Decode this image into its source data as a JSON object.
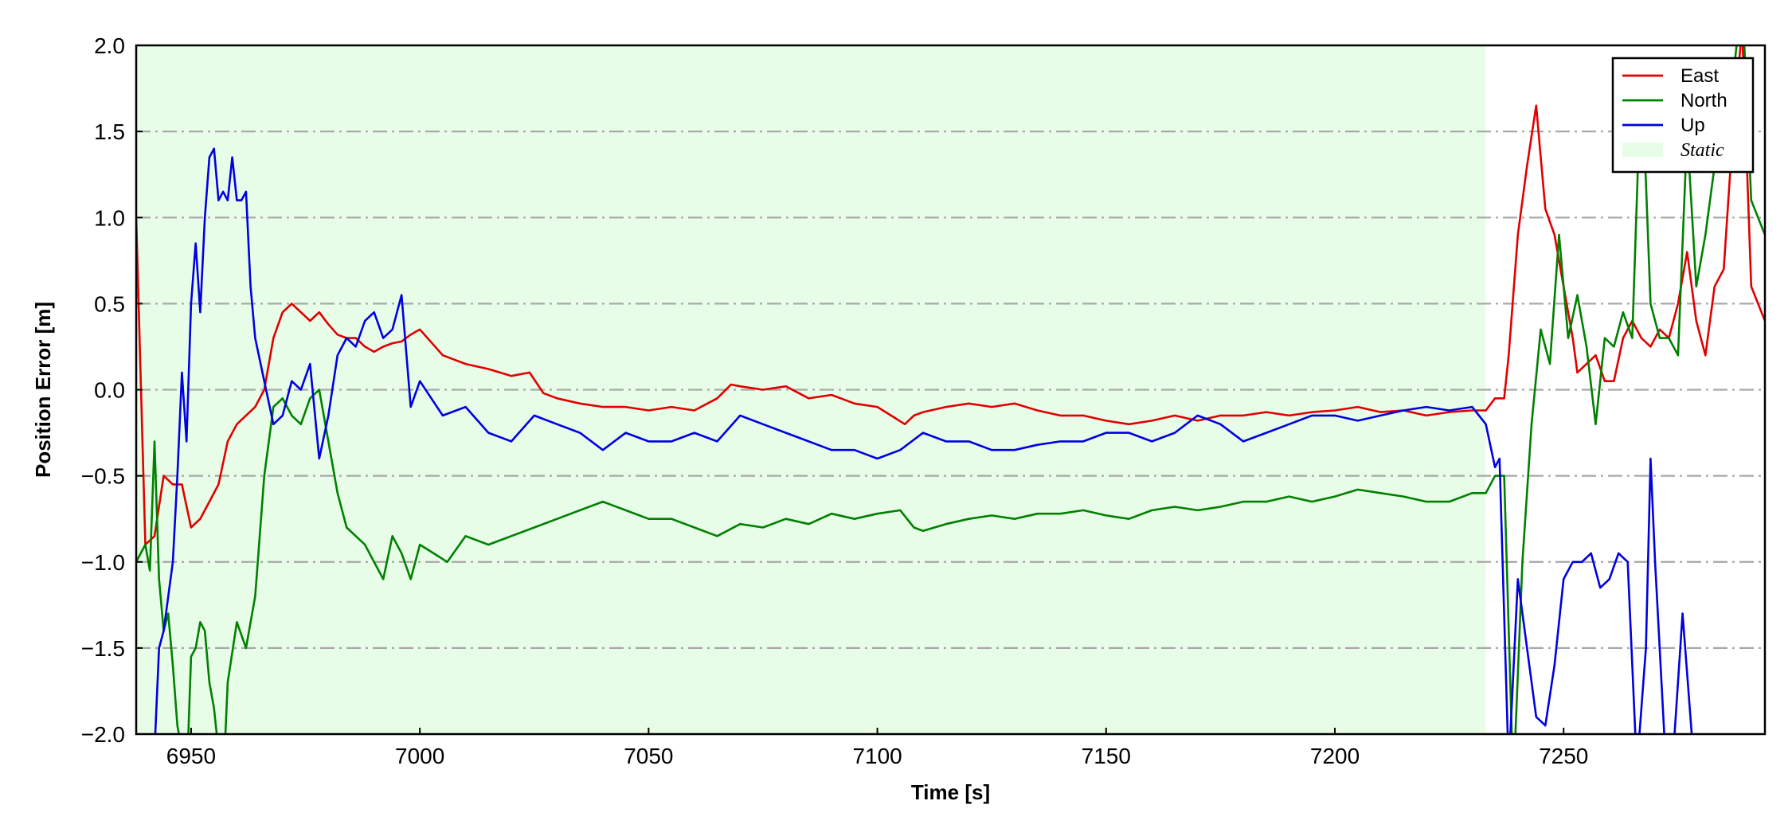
{
  "chart_data": {
    "type": "line",
    "title": "",
    "xlabel": "Time [s]",
    "ylabel": "Position Error [m]",
    "xlim": [
      6938,
      7294
    ],
    "ylim": [
      -2.0,
      2.0
    ],
    "xticks": [
      6950,
      7000,
      7050,
      7100,
      7150,
      7200,
      7250
    ],
    "xtick_labels": [
      "6950",
      "7000",
      "7050",
      "7100",
      "7150",
      "7200",
      "7250"
    ],
    "yticks": [
      -2.0,
      -1.5,
      -1.0,
      -0.5,
      0.0,
      0.5,
      1.0,
      1.5,
      2.0
    ],
    "ytick_labels": [
      "−2.0",
      "−1.5",
      "−1.0",
      "−0.5",
      "0.0",
      "0.5",
      "1.0",
      "1.5",
      "2.0"
    ],
    "grid": "horizontal dash-dot",
    "legend_position": "top-right",
    "shaded_region": {
      "label": "Static",
      "x_start": 6938,
      "x_end": 7233,
      "color": "#e8fde8"
    },
    "series": [
      {
        "name": "East",
        "color": "#e00000",
        "x": [
          6938,
          6940,
          6942,
          6944,
          6946,
          6948,
          6950,
          6952,
          6954,
          6956,
          6958,
          6960,
          6962,
          6964,
          6966,
          6968,
          6970,
          6972,
          6974,
          6976,
          6978,
          6980,
          6982,
          6984,
          6986,
          6988,
          6990,
          6992,
          6994,
          6996,
          6998,
          7000,
          7005,
          7010,
          7015,
          7020,
          7024,
          7027,
          7030,
          7035,
          7040,
          7045,
          7050,
          7055,
          7060,
          7065,
          7068,
          7070,
          7075,
          7080,
          7085,
          7090,
          7095,
          7100,
          7103,
          7106,
          7108,
          7110,
          7115,
          7120,
          7125,
          7130,
          7135,
          7140,
          7145,
          7150,
          7155,
          7160,
          7165,
          7170,
          7175,
          7180,
          7185,
          7190,
          7195,
          7200,
          7205,
          7210,
          7215,
          7220,
          7225,
          7230,
          7233,
          7235,
          7237,
          7238,
          7240,
          7242,
          7244,
          7246,
          7248,
          7250,
          7252,
          7253,
          7255,
          7257,
          7259,
          7261,
          7263,
          7265,
          7267,
          7269,
          7271,
          7273,
          7275,
          7277,
          7279,
          7281,
          7283,
          7285,
          7287,
          7289,
          7291,
          7294
        ],
        "values": [
          1.0,
          -0.9,
          -0.85,
          -0.5,
          -0.55,
          -0.55,
          -0.8,
          -0.75,
          -0.65,
          -0.55,
          -0.3,
          -0.2,
          -0.15,
          -0.1,
          0.0,
          0.3,
          0.45,
          0.5,
          0.45,
          0.4,
          0.45,
          0.38,
          0.32,
          0.3,
          0.3,
          0.25,
          0.22,
          0.25,
          0.27,
          0.28,
          0.32,
          0.35,
          0.2,
          0.15,
          0.12,
          0.08,
          0.1,
          -0.02,
          -0.05,
          -0.08,
          -0.1,
          -0.1,
          -0.12,
          -0.1,
          -0.12,
          -0.05,
          0.03,
          0.02,
          0.0,
          0.02,
          -0.05,
          -0.03,
          -0.08,
          -0.1,
          -0.15,
          -0.2,
          -0.15,
          -0.13,
          -0.1,
          -0.08,
          -0.1,
          -0.08,
          -0.12,
          -0.15,
          -0.15,
          -0.18,
          -0.2,
          -0.18,
          -0.15,
          -0.18,
          -0.15,
          -0.15,
          -0.13,
          -0.15,
          -0.13,
          -0.12,
          -0.1,
          -0.13,
          -0.12,
          -0.15,
          -0.13,
          -0.12,
          -0.12,
          -0.05,
          -0.05,
          0.2,
          0.9,
          1.3,
          1.65,
          1.05,
          0.9,
          0.6,
          0.3,
          0.1,
          0.15,
          0.2,
          0.05,
          0.05,
          0.3,
          0.4,
          0.3,
          0.25,
          0.35,
          0.3,
          0.5,
          0.8,
          0.4,
          0.2,
          0.6,
          0.7,
          1.5,
          2.1,
          0.6,
          0.4
        ]
      },
      {
        "name": "North",
        "color": "#008000",
        "x": [
          6938,
          6939,
          6940,
          6941,
          6942,
          6943,
          6944,
          6945,
          6946,
          6947,
          6948,
          6949,
          6950,
          6951,
          6952,
          6953,
          6954,
          6955,
          6956,
          6957,
          6958,
          6960,
          6962,
          6964,
          6966,
          6968,
          6970,
          6972,
          6974,
          6976,
          6978,
          6980,
          6982,
          6984,
          6986,
          6988,
          6990,
          6992,
          6994,
          6996,
          6998,
          7000,
          7003,
          7006,
          7010,
          7015,
          7020,
          7025,
          7030,
          7035,
          7040,
          7045,
          7050,
          7055,
          7060,
          7065,
          7070,
          7075,
          7080,
          7085,
          7090,
          7095,
          7100,
          7105,
          7108,
          7110,
          7115,
          7120,
          7125,
          7130,
          7135,
          7140,
          7145,
          7150,
          7155,
          7160,
          7165,
          7170,
          7175,
          7180,
          7185,
          7190,
          7195,
          7200,
          7205,
          7210,
          7215,
          7220,
          7225,
          7230,
          7233,
          7235,
          7237,
          7239,
          7241,
          7243,
          7245,
          7247,
          7249,
          7251,
          7253,
          7255,
          7257,
          7259,
          7261,
          7263,
          7265,
          7267,
          7269,
          7271,
          7273,
          7275,
          7277,
          7279,
          7281,
          7283,
          7285,
          7287,
          7289,
          7291,
          7294
        ],
        "values": [
          -1.0,
          -0.95,
          -0.9,
          -1.05,
          -0.3,
          -1.1,
          -1.4,
          -1.3,
          -1.6,
          -1.95,
          -2.1,
          -2.3,
          -1.55,
          -1.5,
          -1.35,
          -1.4,
          -1.7,
          -1.85,
          -2.1,
          -2.3,
          -1.7,
          -1.35,
          -1.5,
          -1.2,
          -0.5,
          -0.1,
          -0.05,
          -0.15,
          -0.2,
          -0.05,
          0.0,
          -0.3,
          -0.6,
          -0.8,
          -0.85,
          -0.9,
          -1.0,
          -1.1,
          -0.85,
          -0.95,
          -1.1,
          -0.9,
          -0.95,
          -1.0,
          -0.85,
          -0.9,
          -0.85,
          -0.8,
          -0.75,
          -0.7,
          -0.65,
          -0.7,
          -0.75,
          -0.75,
          -0.8,
          -0.85,
          -0.78,
          -0.8,
          -0.75,
          -0.78,
          -0.72,
          -0.75,
          -0.72,
          -0.7,
          -0.8,
          -0.82,
          -0.78,
          -0.75,
          -0.73,
          -0.75,
          -0.72,
          -0.72,
          -0.7,
          -0.73,
          -0.75,
          -0.7,
          -0.68,
          -0.7,
          -0.68,
          -0.65,
          -0.65,
          -0.62,
          -0.65,
          -0.62,
          -0.58,
          -0.6,
          -0.62,
          -0.65,
          -0.65,
          -0.6,
          -0.6,
          -0.5,
          -0.5,
          -2.3,
          -1.0,
          -0.2,
          0.35,
          0.15,
          0.9,
          0.3,
          0.55,
          0.25,
          -0.2,
          0.3,
          0.25,
          0.45,
          0.3,
          1.9,
          0.5,
          0.3,
          0.3,
          0.2,
          1.5,
          0.6,
          0.9,
          1.3,
          1.5,
          1.8,
          2.3,
          1.1,
          0.9
        ]
      },
      {
        "name": "Up",
        "color": "#0000e0",
        "x": [
          6938,
          6942,
          6943,
          6944,
          6946,
          6947,
          6948,
          6949,
          6950,
          6951,
          6952,
          6953,
          6954,
          6955,
          6956,
          6957,
          6958,
          6959,
          6960,
          6961,
          6962,
          6963,
          6964,
          6966,
          6968,
          6970,
          6972,
          6974,
          6976,
          6978,
          6980,
          6982,
          6984,
          6986,
          6988,
          6990,
          6992,
          6994,
          6996,
          6998,
          7000,
          7005,
          7010,
          7015,
          7020,
          7025,
          7030,
          7035,
          7040,
          7045,
          7050,
          7055,
          7060,
          7065,
          7070,
          7075,
          7080,
          7085,
          7090,
          7095,
          7100,
          7105,
          7110,
          7115,
          7120,
          7125,
          7130,
          7135,
          7140,
          7145,
          7150,
          7155,
          7160,
          7165,
          7170,
          7175,
          7180,
          7185,
          7190,
          7195,
          7200,
          7205,
          7210,
          7215,
          7220,
          7225,
          7230,
          7233,
          7235,
          7236,
          7238,
          7240,
          7242,
          7244,
          7246,
          7248,
          7250,
          7252,
          7254,
          7256,
          7258,
          7260,
          7262,
          7264,
          7266,
          7268,
          7269,
          7270,
          7272,
          7274,
          7276,
          7278,
          7280
        ],
        "values": [
          -2.1,
          -2.1,
          -1.5,
          -1.4,
          -1.0,
          -0.5,
          0.1,
          -0.3,
          0.5,
          0.85,
          0.45,
          1.0,
          1.35,
          1.4,
          1.1,
          1.15,
          1.1,
          1.35,
          1.1,
          1.1,
          1.15,
          0.6,
          0.3,
          0.05,
          -0.2,
          -0.15,
          0.05,
          0.0,
          0.15,
          -0.4,
          -0.15,
          0.2,
          0.3,
          0.25,
          0.4,
          0.45,
          0.3,
          0.35,
          0.55,
          -0.1,
          0.05,
          -0.15,
          -0.1,
          -0.25,
          -0.3,
          -0.15,
          -0.2,
          -0.25,
          -0.35,
          -0.25,
          -0.3,
          -0.3,
          -0.25,
          -0.3,
          -0.15,
          -0.2,
          -0.25,
          -0.3,
          -0.35,
          -0.35,
          -0.4,
          -0.35,
          -0.25,
          -0.3,
          -0.3,
          -0.35,
          -0.35,
          -0.32,
          -0.3,
          -0.3,
          -0.25,
          -0.25,
          -0.3,
          -0.25,
          -0.15,
          -0.2,
          -0.3,
          -0.25,
          -0.2,
          -0.15,
          -0.15,
          -0.18,
          -0.15,
          -0.12,
          -0.1,
          -0.12,
          -0.1,
          -0.2,
          -0.45,
          -0.4,
          -2.2,
          -1.1,
          -1.5,
          -1.9,
          -1.95,
          -1.6,
          -1.1,
          -1.0,
          -1.0,
          -0.95,
          -1.15,
          -1.1,
          -0.95,
          -1.0,
          -2.2,
          -1.5,
          -0.4,
          -1.0,
          -2.0,
          -2.1,
          -1.3,
          -2.0,
          -2.1
        ]
      }
    ]
  }
}
